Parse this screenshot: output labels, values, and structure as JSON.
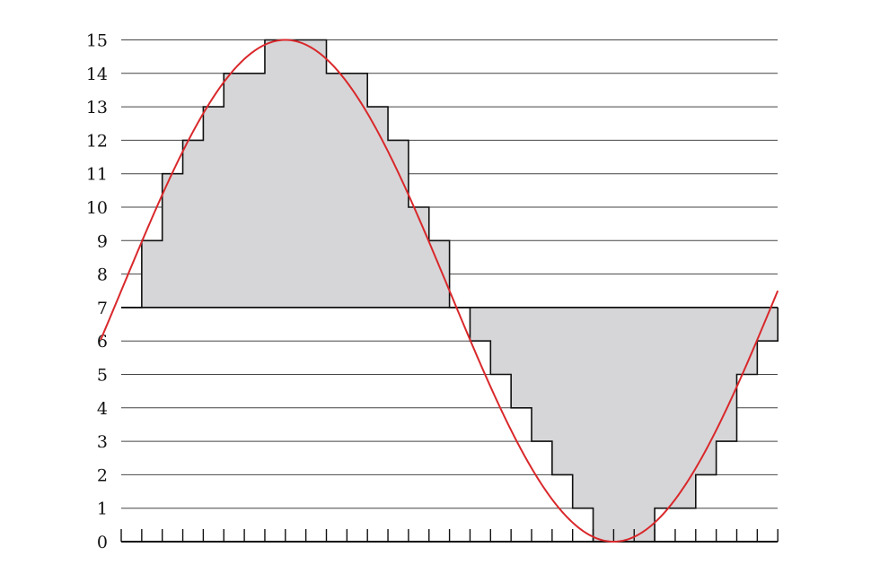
{
  "chart_data": {
    "type": "line",
    "title": "",
    "xlabel": "",
    "ylabel": "",
    "ylim": [
      0,
      15
    ],
    "yticks": [
      "0",
      "1",
      "2",
      "3",
      "4",
      "5",
      "6",
      "7",
      "8",
      "9",
      "10",
      "11",
      "12",
      "13",
      "14",
      "15"
    ],
    "x_tick_count": 32,
    "grid": true,
    "legend": "none",
    "baseline": 7,
    "series": [
      {
        "kind": "step",
        "values": [
          7,
          9,
          11,
          12,
          13,
          14,
          14,
          15,
          15,
          15,
          14,
          14,
          13,
          12,
          10,
          9,
          7,
          6,
          5,
          4,
          3,
          2,
          1,
          0,
          0,
          0,
          1,
          1,
          2,
          3,
          5,
          6
        ],
        "fill": "#d6d6d8",
        "color": "#111111"
      },
      {
        "kind": "curve",
        "function": "sine",
        "offset": 7.5,
        "amplitude": 7.5,
        "period_samples": 32,
        "peak_sample": 8.0,
        "x_range": [
          -1,
          32
        ],
        "color": "#d9282b"
      }
    ]
  }
}
